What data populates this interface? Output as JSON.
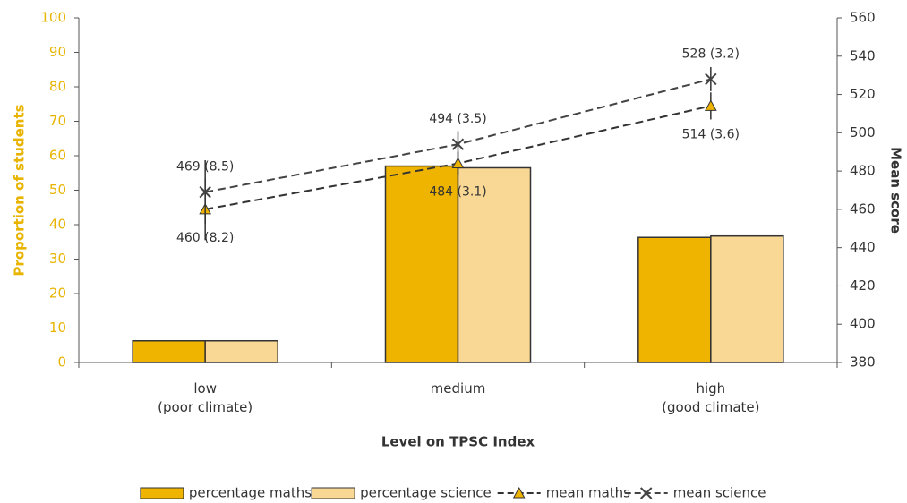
{
  "chart_data": {
    "type": "bar",
    "categories": [
      "low\n(poor climate)",
      "medium",
      "high\n(good climate)"
    ],
    "xlabel": "Level on TPSC Index",
    "ylabel": "Proportion of students",
    "y2label": "Mean score",
    "ylim": [
      0,
      100
    ],
    "yticks": [
      0,
      10,
      20,
      30,
      40,
      50,
      60,
      70,
      80,
      90,
      100
    ],
    "y2lim": [
      380,
      560
    ],
    "y2ticks": [
      380,
      400,
      420,
      440,
      460,
      480,
      500,
      520,
      540,
      560
    ],
    "ycolor": "#e8b400",
    "series": [
      {
        "name": "percentage maths",
        "color": "#efb400",
        "values": [
          6.3,
          57,
          36.3
        ]
      },
      {
        "name": "percentage science",
        "color": "#f8d894",
        "values": [
          6.3,
          56.5,
          36.7
        ]
      },
      {
        "name": "mean maths",
        "type": "line",
        "axis": "y2",
        "color": "#333333",
        "marker": "triangle",
        "values": [
          460,
          484,
          514
        ],
        "errors": [
          8.2,
          3.1,
          3.6
        ],
        "value_labels": [
          "460 (8.2)",
          "484 (3.1)",
          "514 (3.6)"
        ]
      },
      {
        "name": "mean science",
        "type": "line",
        "axis": "y2",
        "color": "#444444",
        "marker": "cross",
        "values": [
          469,
          494,
          528
        ],
        "errors": [
          8.5,
          3.5,
          3.2
        ],
        "value_labels": [
          "469 (8.5)",
          "494 (3.5)",
          "528 (3.2)"
        ]
      }
    ]
  }
}
